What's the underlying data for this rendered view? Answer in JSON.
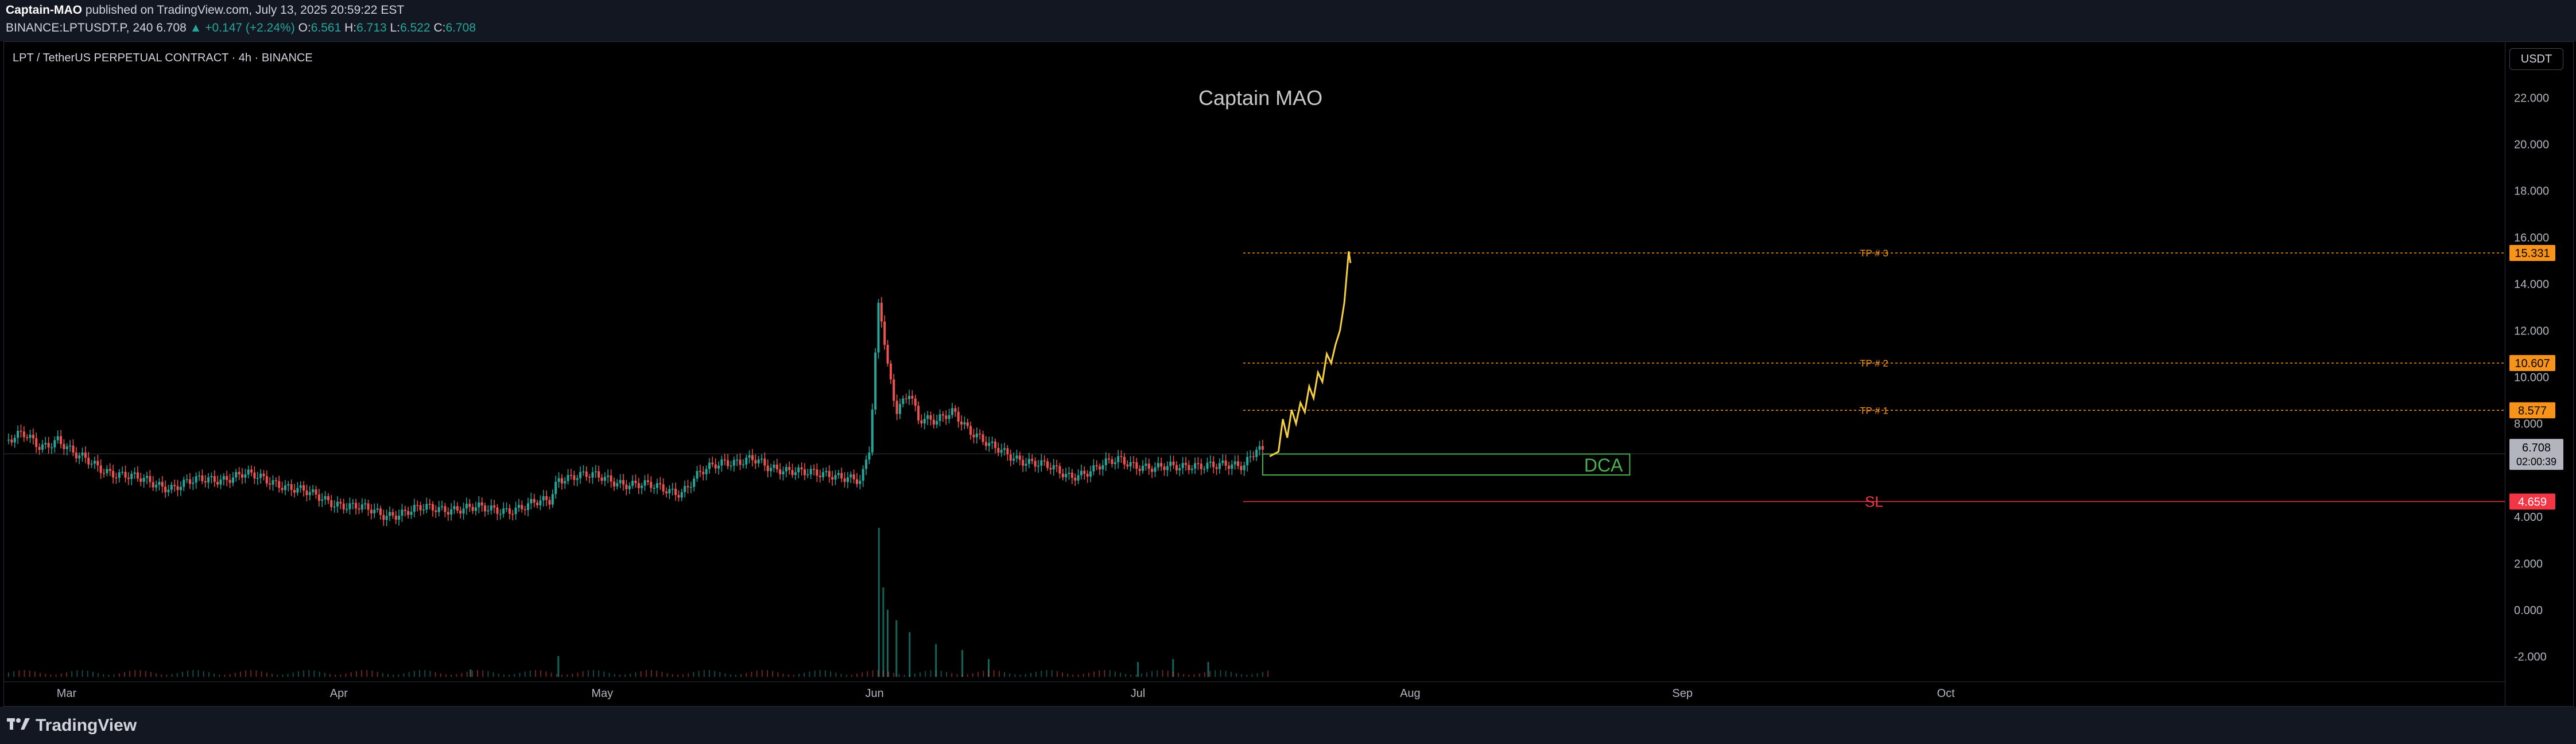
{
  "header": {
    "author": "Captain-MAO",
    "published_text": "published on TradingView.com, July 13, 2025 20:59:22 EST",
    "symbol": "BINANCE:LPTUSDT.P, 240",
    "last": "6.708",
    "change": "▲ +0.147 (+2.24%)",
    "o_label": "O:",
    "o_val": "6.561",
    "h_label": "H:",
    "h_val": "6.713",
    "l_label": "L:",
    "l_val": "6.522",
    "c_label": "C:",
    "c_val": "6.708"
  },
  "chart_title": "LPT / TetherUS PERPETUAL CONTRACT · 4h · BINANCE",
  "watermark": "Captain MAO",
  "currency_button": "USDT",
  "footer": {
    "brand": "TradingView"
  },
  "colors": {
    "up": "#26a69a",
    "down": "#ef5350",
    "projection": "#f5d142",
    "tp": "#f7931a",
    "sl": "#f23645",
    "dca": "#4caf50"
  },
  "chart_data": {
    "type": "candlestick",
    "ylim": [
      -2.5,
      22.5
    ],
    "y_ticks": [
      "22.000",
      "20.000",
      "18.000",
      "16.000",
      "14.000",
      "12.000",
      "10.000",
      "8.000",
      "4.000",
      "2.000",
      "0.000",
      "-2.000"
    ],
    "y_tick_values": [
      22,
      20,
      18,
      16,
      14,
      12,
      10,
      8,
      4,
      2,
      0,
      -2
    ],
    "x_ticks": [
      {
        "label": "Mar",
        "t": 0.0
      },
      {
        "label": "Apr",
        "t": 0.31
      },
      {
        "label": "May",
        "t": 0.61
      },
      {
        "label": "Jun",
        "t": 0.92
      },
      {
        "label": "Jul",
        "t": 1.22
      },
      {
        "label": "Aug",
        "t": 1.53
      },
      {
        "label": "Sep",
        "t": 1.84
      },
      {
        "label": "Oct",
        "t": 2.14
      }
    ],
    "price_path": [
      {
        "t": -0.066,
        "v": 7.3
      },
      {
        "t": -0.05,
        "v": 7.5
      },
      {
        "t": -0.03,
        "v": 7.0
      },
      {
        "t": -0.01,
        "v": 7.4
      },
      {
        "t": 0.01,
        "v": 6.6
      },
      {
        "t": 0.04,
        "v": 6.1
      },
      {
        "t": 0.08,
        "v": 5.6
      },
      {
        "t": 0.12,
        "v": 5.3
      },
      {
        "t": 0.16,
        "v": 5.6
      },
      {
        "t": 0.2,
        "v": 5.8
      },
      {
        "t": 0.24,
        "v": 5.5
      },
      {
        "t": 0.28,
        "v": 4.9
      },
      {
        "t": 0.32,
        "v": 4.5
      },
      {
        "t": 0.36,
        "v": 4.1
      },
      {
        "t": 0.4,
        "v": 4.3
      },
      {
        "t": 0.44,
        "v": 4.4
      },
      {
        "t": 0.48,
        "v": 4.3
      },
      {
        "t": 0.52,
        "v": 4.4
      },
      {
        "t": 0.55,
        "v": 4.7
      },
      {
        "t": 0.56,
        "v": 5.7
      },
      {
        "t": 0.58,
        "v": 5.8
      },
      {
        "t": 0.62,
        "v": 5.6
      },
      {
        "t": 0.66,
        "v": 5.3
      },
      {
        "t": 0.7,
        "v": 5.1
      },
      {
        "t": 0.72,
        "v": 5.8
      },
      {
        "t": 0.75,
        "v": 6.4
      },
      {
        "t": 0.78,
        "v": 6.5
      },
      {
        "t": 0.8,
        "v": 6.0
      },
      {
        "t": 0.83,
        "v": 6.1
      },
      {
        "t": 0.86,
        "v": 5.7
      },
      {
        "t": 0.89,
        "v": 5.8
      },
      {
        "t": 0.905,
        "v": 5.6
      },
      {
        "t": 0.915,
        "v": 7.0
      },
      {
        "t": 0.925,
        "v": 13.3
      },
      {
        "t": 0.935,
        "v": 10.4
      },
      {
        "t": 0.945,
        "v": 8.6
      },
      {
        "t": 0.96,
        "v": 9.5
      },
      {
        "t": 0.97,
        "v": 8.2
      },
      {
        "t": 0.99,
        "v": 8.0
      },
      {
        "t": 1.01,
        "v": 8.6
      },
      {
        "t": 1.03,
        "v": 7.7
      },
      {
        "t": 1.05,
        "v": 7.0
      },
      {
        "t": 1.08,
        "v": 6.6
      },
      {
        "t": 1.11,
        "v": 6.2
      },
      {
        "t": 1.14,
        "v": 5.8
      },
      {
        "t": 1.17,
        "v": 6.0
      },
      {
        "t": 1.2,
        "v": 6.5
      },
      {
        "t": 1.24,
        "v": 6.0
      },
      {
        "t": 1.28,
        "v": 6.3
      },
      {
        "t": 1.31,
        "v": 6.1
      },
      {
        "t": 1.34,
        "v": 6.3
      },
      {
        "t": 1.355,
        "v": 7.0
      },
      {
        "t": 1.365,
        "v": 6.7
      }
    ],
    "projection_path": [
      {
        "t": 1.37,
        "v": 6.6
      },
      {
        "t": 1.38,
        "v": 6.8
      },
      {
        "t": 1.385,
        "v": 8.2
      },
      {
        "t": 1.39,
        "v": 7.4
      },
      {
        "t": 1.395,
        "v": 8.6
      },
      {
        "t": 1.4,
        "v": 8.0
      },
      {
        "t": 1.405,
        "v": 8.9
      },
      {
        "t": 1.41,
        "v": 8.5
      },
      {
        "t": 1.415,
        "v": 9.6
      },
      {
        "t": 1.42,
        "v": 9.1
      },
      {
        "t": 1.425,
        "v": 10.2
      },
      {
        "t": 1.43,
        "v": 9.8
      },
      {
        "t": 1.435,
        "v": 11.0
      },
      {
        "t": 1.44,
        "v": 10.6
      },
      {
        "t": 1.445,
        "v": 11.4
      },
      {
        "t": 1.45,
        "v": 12.0
      },
      {
        "t": 1.455,
        "v": 13.2
      },
      {
        "t": 1.46,
        "v": 15.4
      },
      {
        "t": 1.462,
        "v": 14.9
      }
    ],
    "volume_spikes": [
      {
        "t": 0.925,
        "v": 1.0
      },
      {
        "t": 0.93,
        "v": 0.6
      },
      {
        "t": 0.935,
        "v": 0.45
      },
      {
        "t": 0.945,
        "v": 0.38
      },
      {
        "t": 0.96,
        "v": 0.3
      },
      {
        "t": 0.99,
        "v": 0.22
      },
      {
        "t": 1.02,
        "v": 0.18
      },
      {
        "t": 1.05,
        "v": 0.12
      },
      {
        "t": 0.56,
        "v": 0.14
      },
      {
        "t": 0.46,
        "v": 0.05
      },
      {
        "t": 1.22,
        "v": 0.1
      },
      {
        "t": 1.26,
        "v": 0.12
      },
      {
        "t": 1.3,
        "v": 0.1
      }
    ],
    "levels": [
      {
        "label": "TP # 3",
        "value": 15.331,
        "price_label": "15.331",
        "kind": "tp"
      },
      {
        "label": "TP # 2",
        "value": 10.607,
        "price_label": "10.607",
        "kind": "tp"
      },
      {
        "label": "TP # 1",
        "value": 8.577,
        "price_label": "8.577",
        "kind": "tp"
      },
      {
        "label": "SL",
        "value": 4.659,
        "price_label": "4.659",
        "kind": "sl"
      }
    ],
    "dca_zone": {
      "label": "DCA",
      "top": 6.7,
      "bottom": 5.8,
      "t_start": 1.362,
      "t_end": 1.78
    },
    "last_price": {
      "value": 6.708,
      "label": "6.708",
      "countdown": "02:00:39"
    }
  }
}
